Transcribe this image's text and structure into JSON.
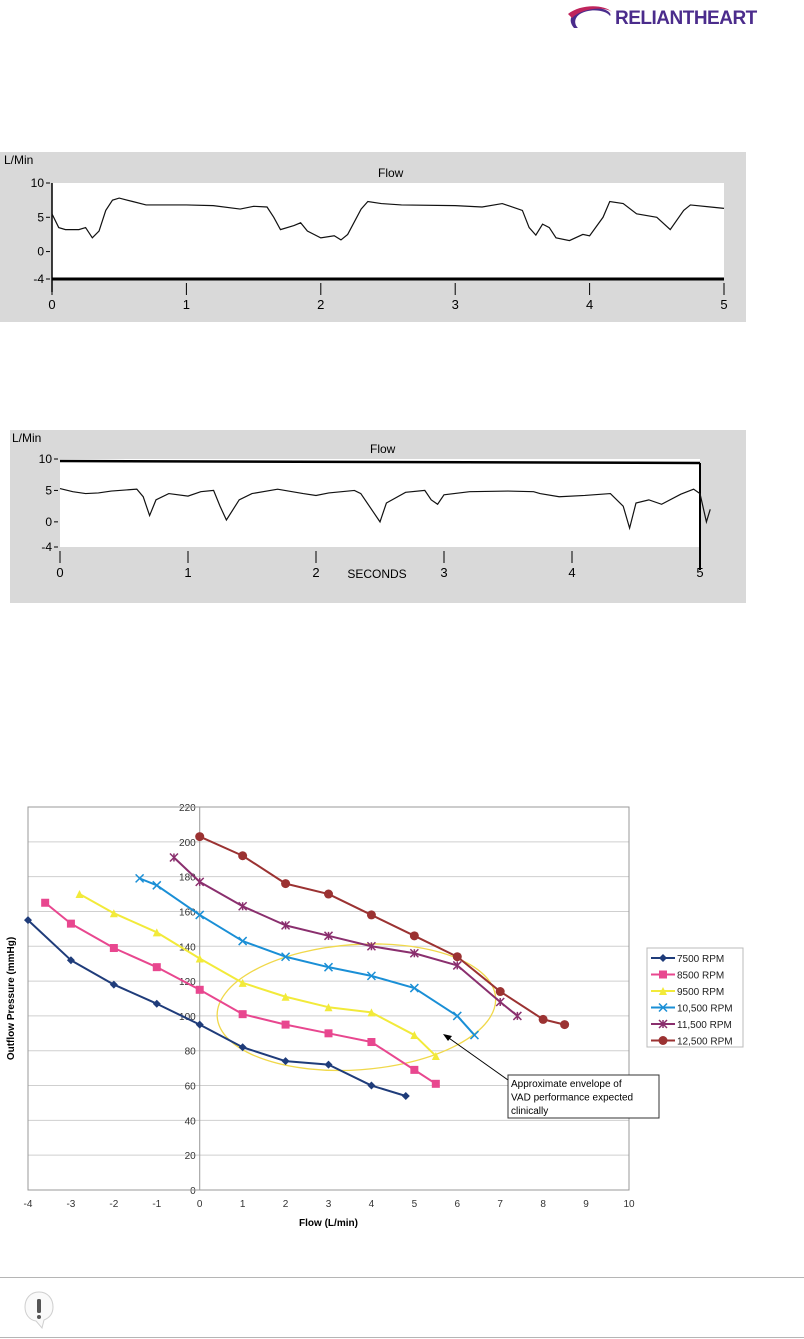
{
  "header": {
    "logo_text": "RELIANTHEART",
    "brand_colors": [
      "#4b2c8c",
      "#c0245c"
    ]
  },
  "chart_data": [
    {
      "type": "line",
      "title": "Flow",
      "ylabel": "L/Min",
      "xlabel": "",
      "yticks": [
        "10",
        "5",
        "0",
        "-4"
      ],
      "xticks": [
        "0",
        "1",
        "2",
        "3",
        "4",
        "5"
      ],
      "xlim": [
        0,
        5
      ],
      "ylim": [
        -4,
        10
      ],
      "series": [
        {
          "x": [
            0,
            0.05,
            0.1,
            0.2,
            0.25,
            0.3,
            0.35,
            0.4,
            0.45,
            0.5,
            0.6,
            0.7,
            1.0,
            1.2,
            1.4,
            1.5,
            1.6,
            1.65,
            1.7,
            1.8,
            1.85,
            1.9,
            2.0,
            2.1,
            2.15,
            2.2,
            2.3,
            2.35,
            2.45,
            2.6,
            3.0,
            3.2,
            3.35,
            3.5,
            3.55,
            3.6,
            3.65,
            3.7,
            3.75,
            3.85,
            3.95,
            4.0,
            4.1,
            4.15,
            4.25,
            4.35,
            4.5,
            4.6,
            4.7,
            4.75,
            4.9,
            5.0
          ],
          "y": [
            5.5,
            3.5,
            3.2,
            3.2,
            3.5,
            2,
            3,
            6,
            7.5,
            7.8,
            7.3,
            6.8,
            6.8,
            6.7,
            6.2,
            6.6,
            6.5,
            5,
            3.2,
            3.8,
            4.2,
            3,
            2,
            2.3,
            1.7,
            2.5,
            6.2,
            7.3,
            7,
            6.8,
            6.7,
            6.5,
            7,
            6,
            3.5,
            2.4,
            4,
            3.5,
            2,
            1.6,
            2.5,
            2.3,
            5,
            7.3,
            7,
            5.5,
            5,
            3.2,
            6,
            6.8,
            6.5,
            6.3
          ]
        }
      ]
    },
    {
      "type": "line",
      "title": "Flow",
      "ylabel": "L/Min",
      "xlabel": "SECONDS",
      "yticks": [
        "10",
        "5",
        "0",
        "-4"
      ],
      "xticks": [
        "0",
        "1",
        "2",
        "3",
        "4",
        "5"
      ],
      "xlim": [
        0,
        5
      ],
      "ylim": [
        -4,
        10
      ],
      "series": [
        {
          "x": [
            0,
            0.1,
            0.2,
            0.3,
            0.4,
            0.6,
            0.65,
            0.7,
            0.75,
            0.85,
            1.0,
            1.1,
            1.2,
            1.25,
            1.3,
            1.4,
            1.5,
            1.7,
            1.9,
            2.0,
            2.1,
            2.3,
            2.35,
            2.45,
            2.5,
            2.55,
            2.7,
            2.85,
            2.9,
            2.95,
            3.0,
            3.2,
            3.5,
            3.7,
            3.75,
            3.9,
            4.1,
            4.3,
            4.4,
            4.45,
            4.5,
            4.6,
            4.7,
            4.85,
            4.95,
            5.0,
            5.05,
            5.08
          ],
          "y": [
            5.3,
            4.8,
            4.5,
            4.6,
            4.9,
            5.2,
            4,
            1,
            3.5,
            4.5,
            4.1,
            4.8,
            5,
            2.5,
            0.3,
            3.5,
            4.5,
            5.2,
            4.5,
            4.2,
            4.6,
            5,
            4.5,
            1.5,
            0,
            3,
            4.7,
            5,
            3.5,
            2.8,
            4.3,
            4.8,
            4.9,
            4.8,
            4.5,
            4,
            4.2,
            4.5,
            2.5,
            -1,
            3,
            3.5,
            2.8,
            4.4,
            5.2,
            4.5,
            0,
            2
          ]
        }
      ]
    },
    {
      "type": "line",
      "title": "",
      "xlabel": "Flow (L/min)",
      "ylabel": "Outflow Pressure (mmHg)",
      "xlim": [
        -4,
        10
      ],
      "ylim": [
        0,
        220
      ],
      "xticks": [
        "-4",
        "-3",
        "-2",
        "-1",
        "0",
        "1",
        "2",
        "3",
        "4",
        "5",
        "6",
        "7",
        "8",
        "9",
        "10"
      ],
      "yticks": [
        "0",
        "20",
        "40",
        "60",
        "80",
        "100",
        "120",
        "140",
        "160",
        "180",
        "200",
        "220"
      ],
      "grid": true,
      "legend": "right",
      "series": [
        {
          "name": "7500 RPM",
          "color": "#1f3c7a",
          "marker": "diamond",
          "x": [
            -4,
            -3,
            -2,
            -1,
            0,
            1,
            2,
            3,
            4,
            4.8
          ],
          "y": [
            155,
            132,
            118,
            107,
            95,
            82,
            74,
            72,
            60,
            54
          ]
        },
        {
          "name": "8500 RPM",
          "color": "#e8478f",
          "marker": "square",
          "x": [
            -3.6,
            -3,
            -2,
            -1,
            0,
            1,
            2,
            3,
            4,
            5,
            5.5
          ],
          "y": [
            165,
            153,
            139,
            128,
            115,
            101,
            95,
            90,
            85,
            69,
            61
          ]
        },
        {
          "name": "9500 RPM",
          "color": "#f2ea3a",
          "marker": "triangle",
          "x": [
            -2.8,
            -2,
            -1,
            0,
            1,
            2,
            3,
            4,
            5,
            5.5
          ],
          "y": [
            170,
            159,
            148,
            133,
            119,
            111,
            105,
            102,
            89,
            77
          ]
        },
        {
          "name": "10,500 RPM",
          "color": "#1a8fd6",
          "marker": "x",
          "x": [
            -1.4,
            -1,
            0,
            1,
            2,
            3,
            4,
            5,
            6,
            6.4
          ],
          "y": [
            179,
            175,
            158,
            143,
            134,
            128,
            123,
            116,
            100,
            89
          ]
        },
        {
          "name": "11,500 RPM",
          "color": "#8a2f6e",
          "marker": "star",
          "x": [
            -0.6,
            0,
            1,
            2,
            3,
            4,
            5,
            6,
            7,
            7.4
          ],
          "y": [
            191,
            177,
            163,
            152,
            146,
            140,
            136,
            129,
            108,
            100
          ]
        },
        {
          "name": "12,500 RPM",
          "color": "#9b3232",
          "marker": "circle",
          "x": [
            0,
            1,
            2,
            3,
            4,
            5,
            6,
            7,
            8,
            8.5
          ],
          "y": [
            203,
            192,
            176,
            170,
            158,
            146,
            134,
            114,
            98,
            95
          ]
        }
      ],
      "annotation": {
        "text": "Approximate envelope of VAD performance expected clinically",
        "lines": [
          "Approximate envelope of",
          "VAD performance expected",
          "clinically"
        ],
        "envelope_color": "#f0d84a"
      }
    }
  ],
  "footer": {
    "icon": "exclamation-callout-icon"
  }
}
